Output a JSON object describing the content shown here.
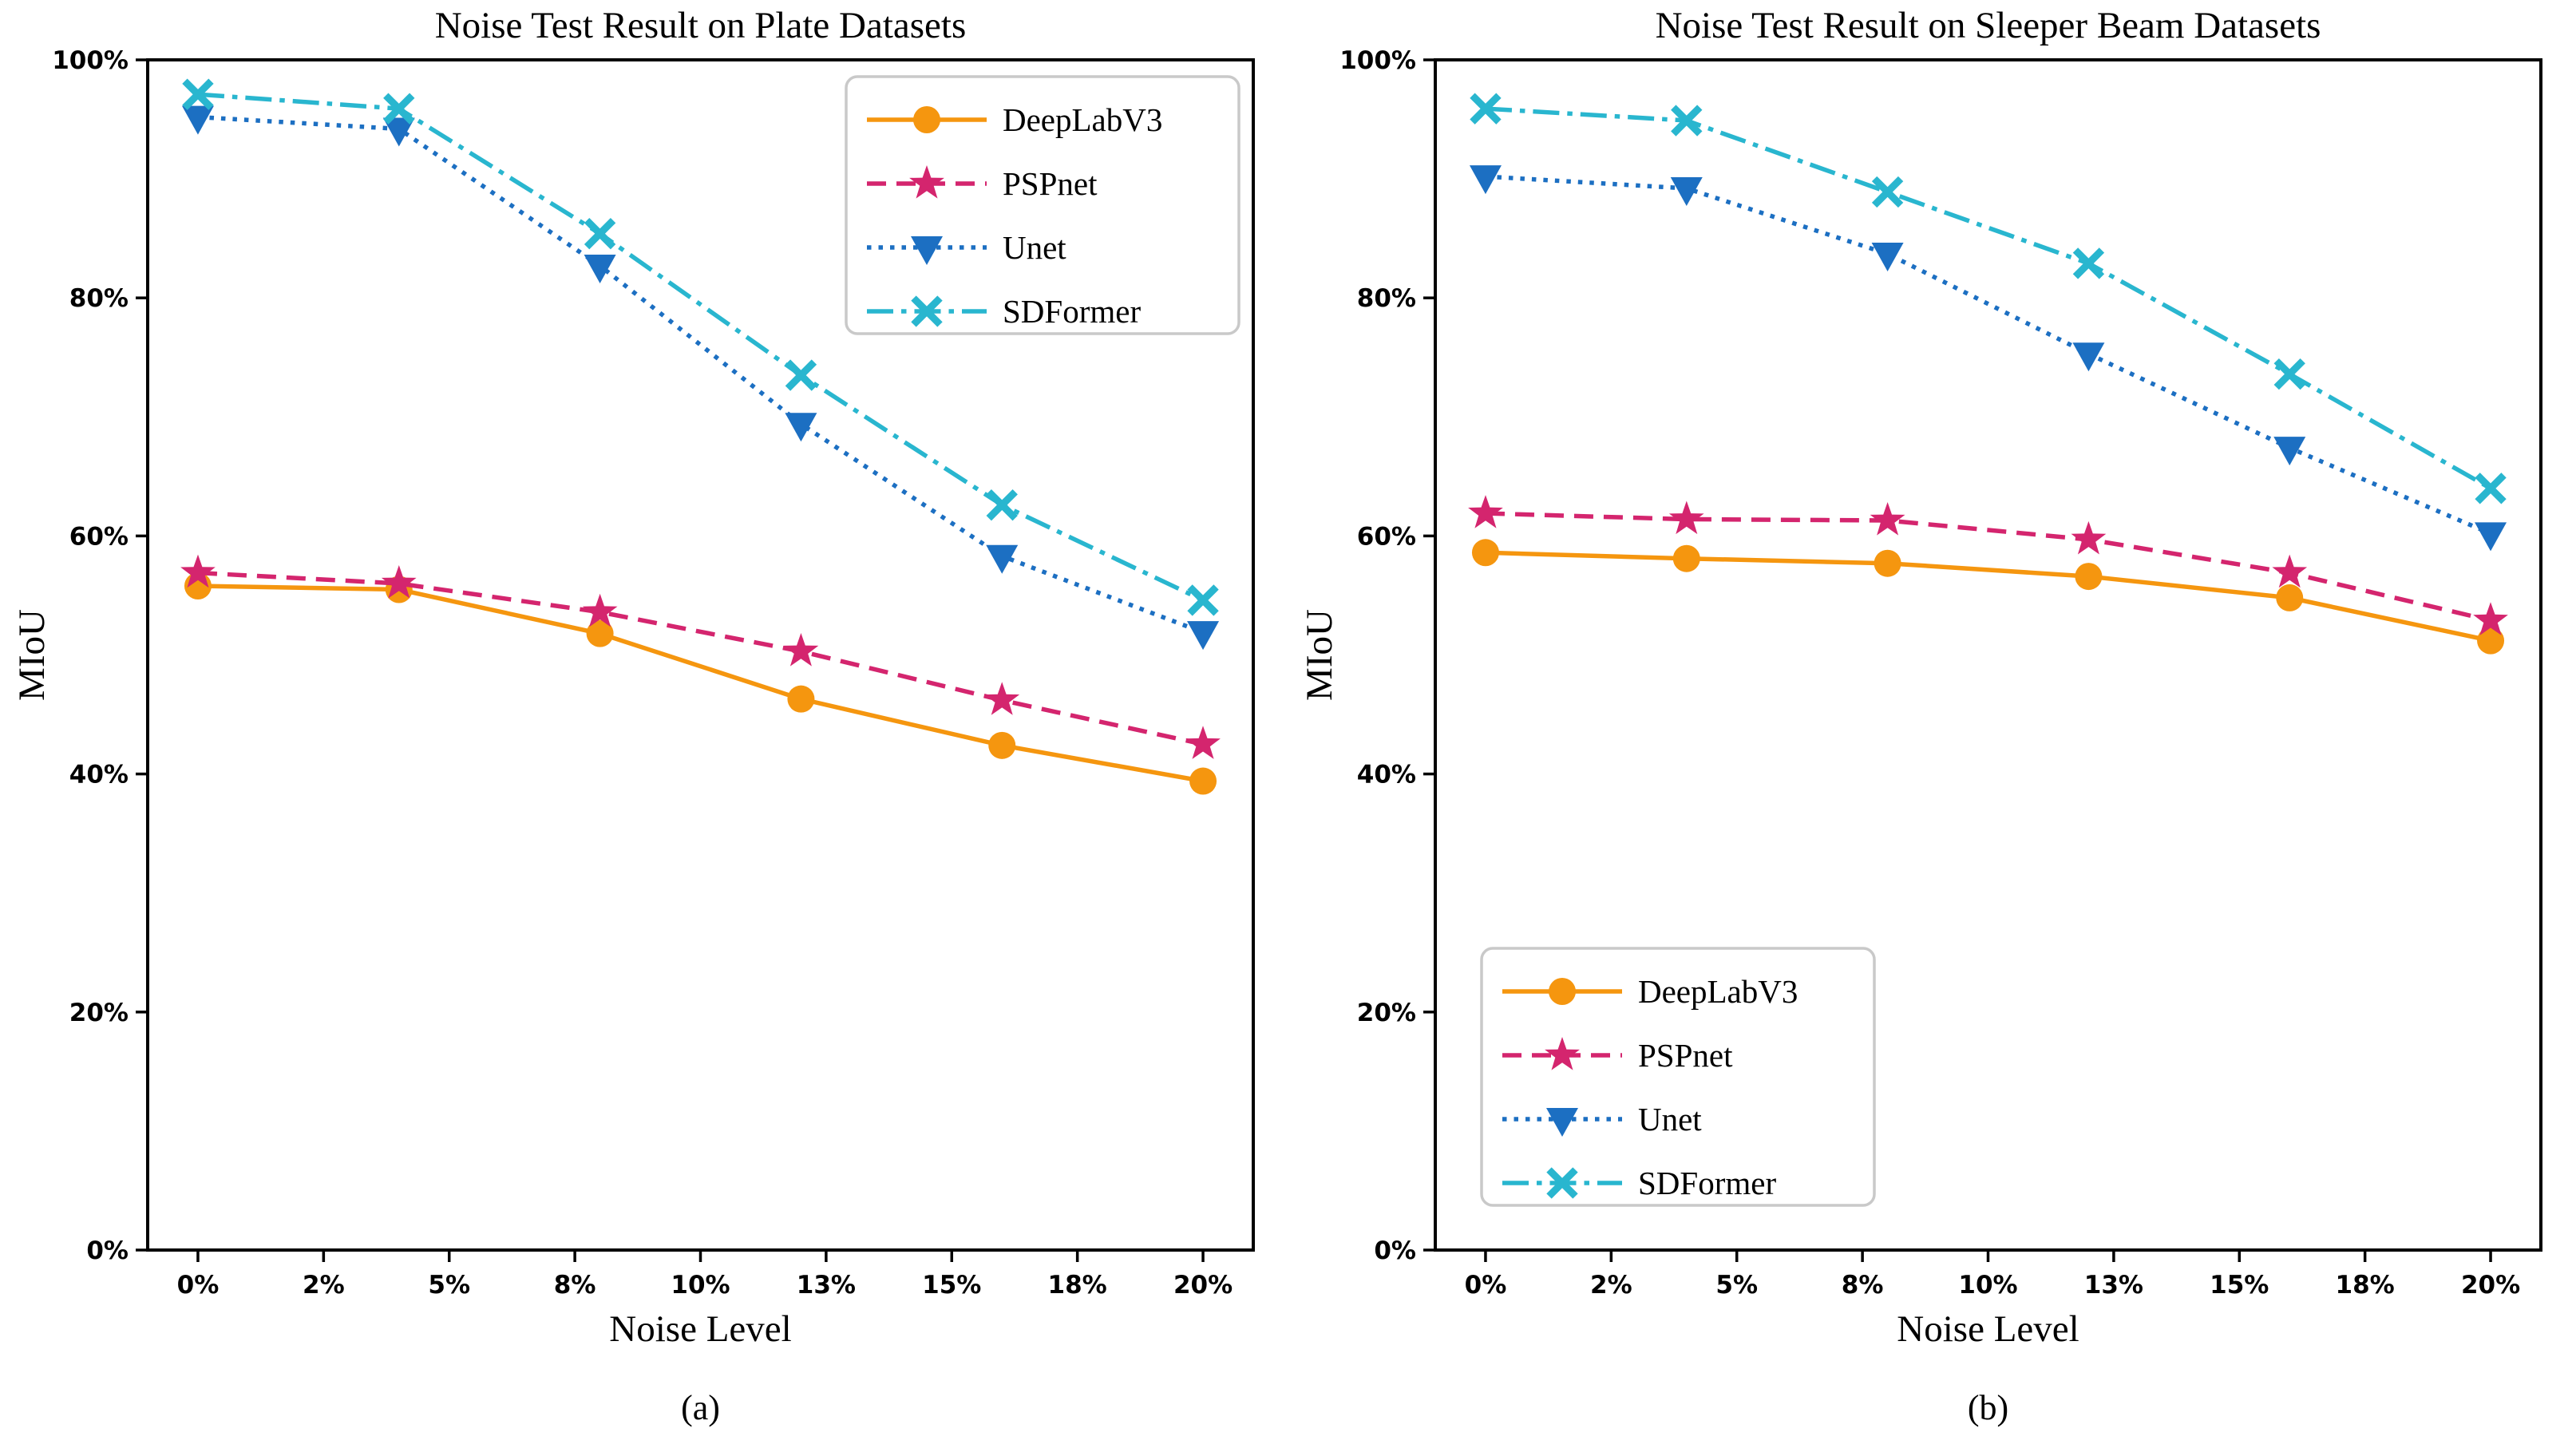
{
  "figure": {
    "background": "#FFFFFF"
  },
  "palette": {
    "deeplabv3": "#F5960F",
    "pspnet": "#D4256E",
    "unet": "#1C6FC2",
    "sdformer": "#29B6CF",
    "axis": "#000000",
    "legend_border": "#C9C9C9"
  },
  "chart_data": [
    {
      "type": "line",
      "title": "Noise Test Result on Plate Datasets",
      "caption": "(a)",
      "xlabel": "Noise Level",
      "ylabel": "MIoU",
      "xlim": [
        -1,
        21
      ],
      "ylim": [
        0,
        100
      ],
      "grid": false,
      "legend_position": "upper right",
      "x_tick_values": [
        0,
        2.5,
        5,
        7.5,
        10,
        12.5,
        15,
        17.5,
        20
      ],
      "x_tick_labels": [
        "0%",
        "2%",
        "5%",
        "8%",
        "10%",
        "13%",
        "15%",
        "18%",
        "20%"
      ],
      "y_tick_values": [
        0,
        20,
        40,
        60,
        80,
        100
      ],
      "y_tick_labels": [
        "0%",
        "20%",
        "40%",
        "60%",
        "80%",
        "100%"
      ],
      "x": [
        0,
        4,
        8,
        12,
        16,
        20
      ],
      "series": [
        {
          "name": "DeepLabV3",
          "color_key": "deeplabv3",
          "linestyle": "solid",
          "marker": "circle",
          "values": [
            55.8,
            55.5,
            51.8,
            46.3,
            42.4,
            39.4
          ]
        },
        {
          "name": "PSPnet",
          "color_key": "pspnet",
          "linestyle": "dashed",
          "marker": "star",
          "values": [
            56.9,
            56.0,
            53.6,
            50.3,
            46.2,
            42.5
          ]
        },
        {
          "name": "Unet",
          "color_key": "unet",
          "linestyle": "dotted",
          "marker": "triangle-down",
          "values": [
            95.2,
            94.2,
            82.7,
            69.4,
            58.3,
            51.9
          ]
        },
        {
          "name": "SDFormer",
          "color_key": "sdformer",
          "linestyle": "dashdot",
          "marker": "x",
          "values": [
            97.1,
            95.9,
            85.4,
            73.5,
            62.6,
            54.6
          ]
        }
      ]
    },
    {
      "type": "line",
      "title": "Noise Test Result on Sleeper Beam Datasets",
      "caption": "(b)",
      "xlabel": "Noise Level",
      "ylabel": "MIoU",
      "xlim": [
        -1,
        21
      ],
      "ylim": [
        0,
        100
      ],
      "grid": false,
      "legend_position": "lower left",
      "x_tick_values": [
        0,
        2.5,
        5,
        7.5,
        10,
        12.5,
        15,
        17.5,
        20
      ],
      "x_tick_labels": [
        "0%",
        "2%",
        "5%",
        "8%",
        "10%",
        "13%",
        "15%",
        "18%",
        "20%"
      ],
      "y_tick_values": [
        0,
        20,
        40,
        60,
        80,
        100
      ],
      "y_tick_labels": [
        "0%",
        "20%",
        "40%",
        "60%",
        "80%",
        "100%"
      ],
      "x": [
        0,
        4,
        8,
        12,
        16,
        20
      ],
      "series": [
        {
          "name": "DeepLabV3",
          "color_key": "deeplabv3",
          "linestyle": "solid",
          "marker": "circle",
          "values": [
            58.6,
            58.1,
            57.7,
            56.6,
            54.8,
            51.2
          ]
        },
        {
          "name": "PSPnet",
          "color_key": "pspnet",
          "linestyle": "dashed",
          "marker": "star",
          "values": [
            61.9,
            61.4,
            61.3,
            59.7,
            56.9,
            52.9
          ]
        },
        {
          "name": "Unet",
          "color_key": "unet",
          "linestyle": "dotted",
          "marker": "triangle-down",
          "values": [
            90.2,
            89.2,
            83.7,
            75.3,
            67.4,
            60.2
          ]
        },
        {
          "name": "SDFormer",
          "color_key": "sdformer",
          "linestyle": "dashdot",
          "marker": "x",
          "values": [
            95.9,
            94.9,
            88.9,
            82.9,
            73.6,
            64.0
          ]
        }
      ]
    }
  ]
}
